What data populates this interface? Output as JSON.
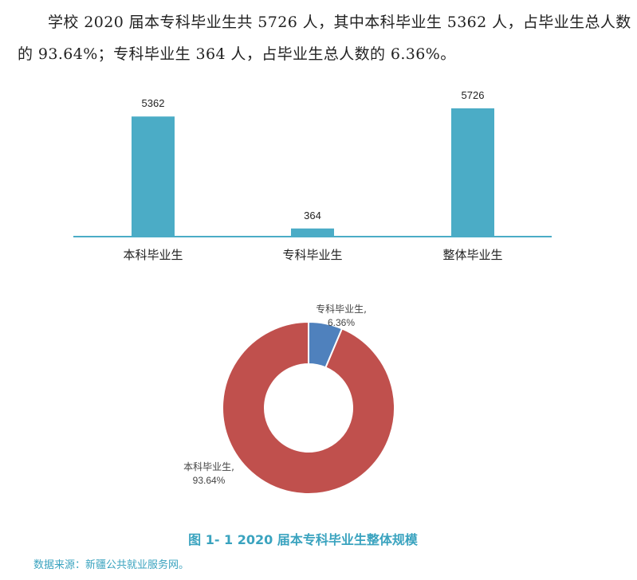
{
  "intro": {
    "text": "学校 2020 届本专科毕业生共 5726 人，其中本科毕业生 5362 人，占毕业生总人数的 93.64%；专科毕业生 364 人，占毕业生总人数的 6.36%。"
  },
  "caption": {
    "text": "图 1- 1    2020 届本专科毕业生整体规模"
  },
  "source": {
    "text": "数据来源：新疆公共就业服务网。"
  },
  "chart_data": [
    {
      "type": "bar",
      "categories": [
        "本科毕业生",
        "专科毕业生",
        "整体毕业生"
      ],
      "values": [
        5362,
        364,
        5726
      ],
      "title": "",
      "xlabel": "",
      "ylabel": "",
      "ylim": [
        0,
        6000
      ],
      "grid": false,
      "color": "#4bacc6"
    },
    {
      "type": "pie",
      "donut": true,
      "slices": [
        {
          "label": "专科毕业生,",
          "percent_label": "6.36%",
          "value": 6.36,
          "color": "#4f81bd"
        },
        {
          "label": "本科毕业生,",
          "percent_label": "93.64%",
          "value": 93.64,
          "color": "#c0504d"
        }
      ]
    }
  ]
}
